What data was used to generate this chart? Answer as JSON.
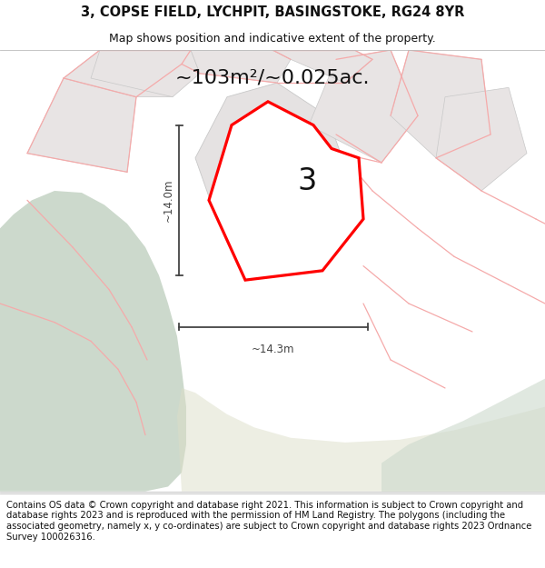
{
  "title": "3, COPSE FIELD, LYCHPIT, BASINGSTOKE, RG24 8YR",
  "subtitle": "Map shows position and indicative extent of the property.",
  "area_label": "~103m²/~0.025ac.",
  "plot_number": "3",
  "dim_vertical": "~14.0m",
  "dim_horizontal": "~14.3m",
  "footer": "Contains OS data © Crown copyright and database right 2021. This information is subject to Crown copyright and database rights 2023 and is reproduced with the permission of HM Land Registry. The polygons (including the associated geometry, namely x, y co-ordinates) are subject to Crown copyright and database rights 2023 Ordnance Survey 100026316.",
  "bg_color": "#ffffff",
  "map_bg": "#ffffff",
  "green_color": "#ccd9cc",
  "gray_plot_color": "#e8e4e4",
  "gray_plot_edge": "#c8c8c8",
  "plot_fill": "#ffffff",
  "plot_outline_color": "#ff0000",
  "dim_color": "#444444",
  "pink_line_color": "#f5aaaa",
  "gray_line_color": "#c8c8c8",
  "title_fontsize": 10.5,
  "subtitle_fontsize": 9,
  "area_label_fontsize": 16,
  "footer_fontsize": 7.2,
  "title_bold": true
}
